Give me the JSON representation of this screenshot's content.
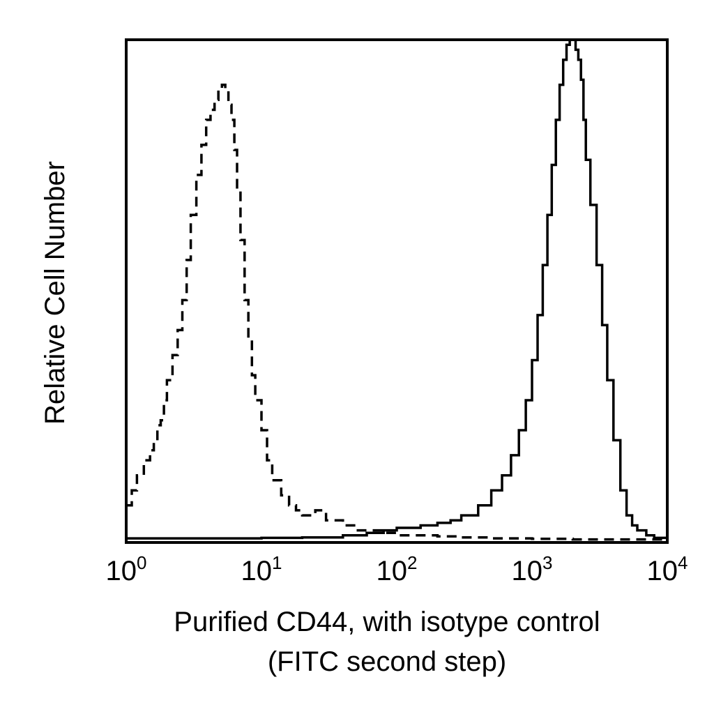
{
  "chart_data": {
    "type": "line",
    "title": "",
    "xlabel": [
      "Purified CD44, with isotype control",
      "(FITC second step)"
    ],
    "ylabel": "Relative Cell Number",
    "xscale": "log",
    "xlim": [
      1,
      10000
    ],
    "ylim": [
      0,
      100
    ],
    "grid": false,
    "legend": "none",
    "xticks": [
      {
        "base": "10",
        "exp": "0",
        "value": 1
      },
      {
        "base": "10",
        "exp": "1",
        "value": 10
      },
      {
        "base": "10",
        "exp": "2",
        "value": 100
      },
      {
        "base": "10",
        "exp": "3",
        "value": 1000
      },
      {
        "base": "10",
        "exp": "4",
        "value": 10000
      }
    ],
    "series": [
      {
        "style": "dashed",
        "color": "#000000",
        "x": [
          1.0,
          1.1,
          1.2,
          1.35,
          1.5,
          1.6,
          1.7,
          1.8,
          1.9,
          2.0,
          2.2,
          2.4,
          2.6,
          2.8,
          3.0,
          3.3,
          3.6,
          3.9,
          4.2,
          4.5,
          4.8,
          5.1,
          5.4,
          5.7,
          6.0,
          6.3,
          6.6,
          7.0,
          7.5,
          8.0,
          8.5,
          9.0,
          10,
          11,
          12,
          14,
          16,
          18,
          20,
          25,
          30,
          35,
          40,
          50,
          60,
          80,
          100,
          150,
          200,
          300,
          500,
          1000,
          2000,
          5000,
          10000
        ],
        "y": [
          7,
          10,
          13,
          16,
          18,
          20,
          23,
          24,
          28,
          32,
          37,
          42,
          48,
          56,
          65,
          73,
          79,
          84,
          86,
          88,
          90,
          91,
          90,
          87,
          84,
          78,
          70,
          60,
          48,
          40,
          33,
          28,
          22,
          16,
          12,
          9,
          7,
          6,
          5,
          6,
          4,
          4,
          3,
          2,
          2,
          1.5,
          1,
          1,
          0.8,
          0.6,
          0.4,
          0.3,
          0.2,
          0.2,
          0.2
        ]
      },
      {
        "style": "solid",
        "color": "#000000",
        "x": [
          1,
          5,
          10,
          20,
          40,
          60,
          80,
          100,
          150,
          200,
          250,
          300,
          400,
          500,
          600,
          700,
          800,
          900,
          1000,
          1100,
          1200,
          1300,
          1400,
          1500,
          1600,
          1700,
          1800,
          1900,
          2000,
          2100,
          2200,
          2300,
          2400,
          2500,
          2700,
          3000,
          3300,
          3600,
          4000,
          4500,
          5000,
          5500,
          6000,
          7000,
          8000,
          10000
        ],
        "y": [
          0.4,
          0.4,
          0.5,
          0.6,
          1,
          1.5,
          2,
          2.5,
          3,
          3.5,
          4,
          5,
          7,
          10,
          13,
          17,
          22,
          28,
          36,
          45,
          55,
          65,
          75,
          84,
          91,
          96,
          99,
          100,
          100,
          98,
          96,
          92,
          84,
          76,
          67,
          55,
          43,
          32,
          20,
          10,
          5,
          3,
          2,
          1,
          0.5,
          0.3
        ]
      }
    ]
  }
}
